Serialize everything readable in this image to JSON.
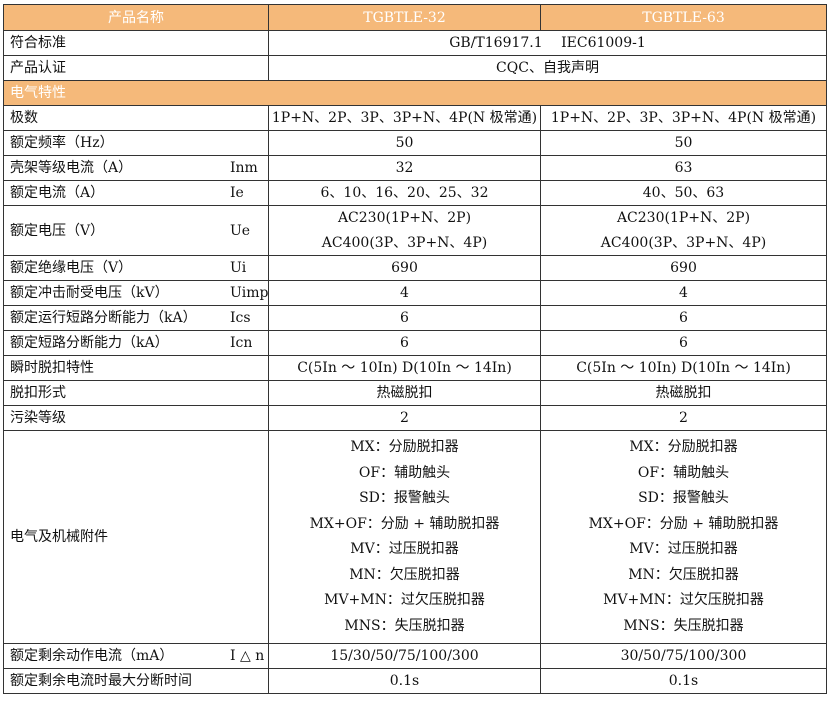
{
  "header": {
    "name": "产品名称",
    "models": [
      "TGBTLE-32",
      "TGBTLE-63"
    ]
  },
  "standard": {
    "label": "符合标准",
    "value": "GB/T16917.1　 IEC61009-1"
  },
  "certification": {
    "label": "产品认证",
    "value": "CQC、自我声明"
  },
  "section_title": "电气特性",
  "rows": [
    {
      "label": "极数",
      "symbol": "",
      "a": "1P+N、2P、3P、3P+N、4P(N 极常通)",
      "b": "1P+N、2P、3P、3P+N、4P(N 极常通)"
    },
    {
      "label": "额定频率（Hz）",
      "symbol": "",
      "a": "50",
      "b": "50"
    },
    {
      "label": "壳架等级电流（A）",
      "symbol": "Inm",
      "a": "32",
      "b": "63"
    },
    {
      "label": "额定电流（A）",
      "symbol": "Ie",
      "a": "6、10、16、20、25、32",
      "b": "40、50、63"
    }
  ],
  "voltage": {
    "label": "额定电压（V）",
    "symbol": "Ue",
    "a": [
      "AC230(1P+N、2P)",
      "AC400(3P、3P+N、4P)"
    ],
    "b": [
      "AC230(1P+N、2P)",
      "AC400(3P、3P+N、4P)"
    ]
  },
  "rows2": [
    {
      "label": "额定绝缘电压（V）",
      "symbol": "Ui",
      "a": "690",
      "b": "690"
    },
    {
      "label": "额定冲击耐受电压（kV）",
      "symbol": "Uimp",
      "a": "4",
      "b": "4"
    },
    {
      "label": "额定运行短路分断能力（kA）",
      "symbol": "Ics",
      "a": "6",
      "b": "6"
    },
    {
      "label": "额定短路分断能力（kA）",
      "symbol": "Icn",
      "a": "6",
      "b": "6"
    },
    {
      "label": "瞬时脱扣特性",
      "symbol": "",
      "a": "C(5In ～ 10In) D(10In ～ 14In)",
      "b": "C(5In ～ 10In) D(10In ～ 14In)"
    },
    {
      "label": "脱扣形式",
      "symbol": "",
      "a": "热磁脱扣",
      "b": "热磁脱扣"
    },
    {
      "label": "污染等级",
      "symbol": "",
      "a": "2",
      "b": "2"
    }
  ],
  "accessories": {
    "label": "电气及机械附件",
    "items": [
      "MX：分励脱扣器",
      "OF：辅助触头",
      "SD：报警触头",
      "MX+OF：分励 + 辅助脱扣器",
      "MV：过压脱扣器",
      "MN：欠压脱扣器",
      "MV+MN：过欠压脱扣器",
      "MNS：失压脱扣器"
    ]
  },
  "rows3": [
    {
      "label": "额定剩余动作电流（mA）",
      "symbol": "I △ n",
      "a": "15/30/50/75/100/300",
      "b": "30/50/75/100/300"
    },
    {
      "label": "额定剩余电流时最大分断时间",
      "symbol": "",
      "a": "0.1s",
      "b": "0.1s"
    }
  ],
  "colors": {
    "header_bg": "#f5b97a",
    "header_text": "#ffffff",
    "border": "#333333"
  }
}
